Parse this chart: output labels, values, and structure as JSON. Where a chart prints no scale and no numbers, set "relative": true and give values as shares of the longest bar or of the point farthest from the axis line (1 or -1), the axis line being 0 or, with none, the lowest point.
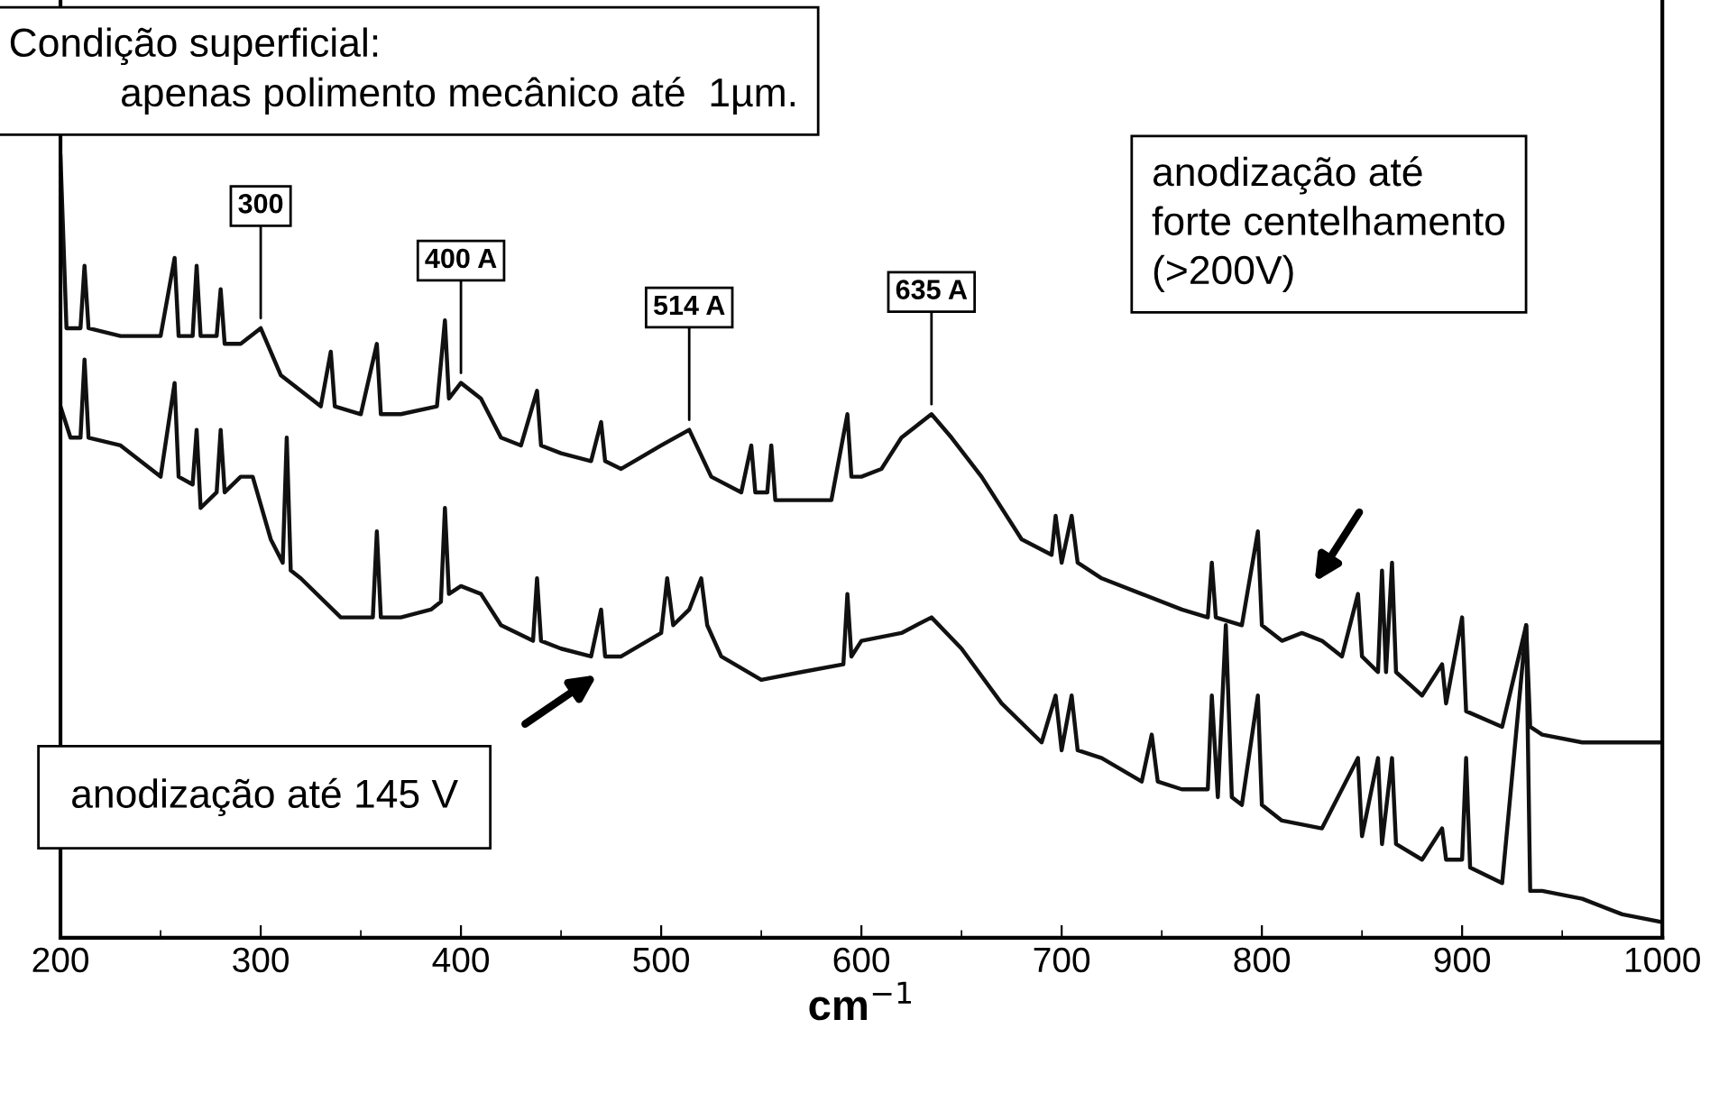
{
  "chart_data": {
    "type": "line",
    "relative": true,
    "xlabel": "cm$^{−1}$",
    "xlim": [
      200,
      1000
    ],
    "xticks": [
      200,
      300,
      400,
      500,
      600,
      700,
      800,
      900,
      1000
    ],
    "grid": false,
    "legend": false,
    "marker": "none",
    "line_style": "solid",
    "tick_labels": "x",
    "annotations": [
      "Condição superficial:\n          apenas polimento mecânico até  1µm.",
      {
        "text": "300",
        "x": 300,
        "y": 0.78
      },
      {
        "text": "400 A",
        "x": 400,
        "y": 0.71
      },
      {
        "text": "514 A",
        "x": 514,
        "y": 0.65
      },
      {
        "text": "635 A",
        "x": 635,
        "y": 0.67
      },
      "anodização até\nforte centelhamento\n(>200V)",
      "anodização até 145 V"
    ],
    "series": [
      {
        "color": "#111111",
        "x": [
          200,
          203,
          210,
          212,
          214,
          230,
          250,
          257,
          259,
          266,
          268,
          270,
          278,
          280,
          282,
          290,
          300,
          310,
          330,
          335,
          337,
          350,
          358,
          360,
          370,
          388,
          392,
          394,
          400,
          410,
          420,
          430,
          438,
          440,
          450,
          465,
          470,
          472,
          480,
          500,
          514,
          525,
          540,
          545,
          547,
          553,
          555,
          557,
          570,
          585,
          593,
          595,
          600,
          610,
          620,
          635,
          645,
          660,
          680,
          695,
          697,
          700,
          705,
          708,
          720,
          740,
          760,
          773,
          775,
          777,
          790,
          798,
          800,
          810,
          820,
          830,
          840,
          848,
          850,
          858,
          860,
          862,
          865,
          867,
          880,
          890,
          892,
          900,
          902,
          920,
          932,
          934,
          940,
          960,
          980,
          1000
        ],
        "values": [
          1.0,
          0.78,
          0.78,
          0.86,
          0.78,
          0.77,
          0.77,
          0.87,
          0.77,
          0.77,
          0.86,
          0.77,
          0.77,
          0.83,
          0.76,
          0.76,
          0.78,
          0.72,
          0.68,
          0.75,
          0.68,
          0.67,
          0.76,
          0.67,
          0.67,
          0.68,
          0.79,
          0.69,
          0.71,
          0.69,
          0.64,
          0.63,
          0.7,
          0.63,
          0.62,
          0.61,
          0.66,
          0.61,
          0.6,
          0.63,
          0.65,
          0.59,
          0.57,
          0.63,
          0.57,
          0.57,
          0.63,
          0.56,
          0.56,
          0.56,
          0.67,
          0.59,
          0.59,
          0.6,
          0.64,
          0.67,
          0.64,
          0.59,
          0.51,
          0.49,
          0.54,
          0.48,
          0.54,
          0.48,
          0.46,
          0.44,
          0.42,
          0.41,
          0.48,
          0.41,
          0.4,
          0.52,
          0.4,
          0.38,
          0.39,
          0.38,
          0.36,
          0.44,
          0.36,
          0.34,
          0.47,
          0.34,
          0.48,
          0.34,
          0.31,
          0.35,
          0.3,
          0.41,
          0.29,
          0.27,
          0.4,
          0.27,
          0.26,
          0.25,
          0.25,
          0.25
        ]
      },
      {
        "color": "#111111",
        "x": [
          200,
          205,
          210,
          212,
          214,
          230,
          250,
          257,
          259,
          266,
          268,
          270,
          278,
          280,
          282,
          290,
          296,
          305,
          311,
          313,
          315,
          320,
          340,
          350,
          356,
          358,
          360,
          370,
          385,
          390,
          392,
          394,
          400,
          410,
          420,
          436,
          438,
          440,
          450,
          465,
          470,
          472,
          480,
          500,
          503,
          506,
          514,
          520,
          523,
          530,
          550,
          570,
          591,
          593,
          595,
          600,
          620,
          635,
          650,
          670,
          690,
          697,
          700,
          705,
          708,
          720,
          740,
          745,
          748,
          760,
          773,
          775,
          778,
          782,
          785,
          790,
          798,
          800,
          810,
          830,
          848,
          850,
          858,
          860,
          865,
          867,
          880,
          890,
          892,
          900,
          902,
          904,
          920,
          932,
          934,
          940,
          960,
          980,
          1000
        ],
        "values": [
          0.68,
          0.64,
          0.64,
          0.74,
          0.64,
          0.63,
          0.59,
          0.71,
          0.59,
          0.58,
          0.65,
          0.55,
          0.57,
          0.65,
          0.57,
          0.59,
          0.59,
          0.51,
          0.48,
          0.64,
          0.47,
          0.46,
          0.41,
          0.41,
          0.41,
          0.52,
          0.41,
          0.41,
          0.42,
          0.43,
          0.55,
          0.44,
          0.45,
          0.44,
          0.4,
          0.38,
          0.46,
          0.38,
          0.37,
          0.36,
          0.42,
          0.36,
          0.36,
          0.39,
          0.46,
          0.4,
          0.42,
          0.46,
          0.4,
          0.36,
          0.33,
          0.34,
          0.35,
          0.44,
          0.36,
          0.38,
          0.39,
          0.41,
          0.37,
          0.3,
          0.25,
          0.31,
          0.24,
          0.31,
          0.24,
          0.23,
          0.2,
          0.26,
          0.2,
          0.19,
          0.19,
          0.31,
          0.18,
          0.4,
          0.18,
          0.17,
          0.31,
          0.17,
          0.15,
          0.14,
          0.23,
          0.13,
          0.23,
          0.12,
          0.23,
          0.12,
          0.1,
          0.14,
          0.1,
          0.1,
          0.23,
          0.09,
          0.07,
          0.4,
          0.06,
          0.06,
          0.05,
          0.03,
          0.02
        ]
      }
    ]
  }
}
